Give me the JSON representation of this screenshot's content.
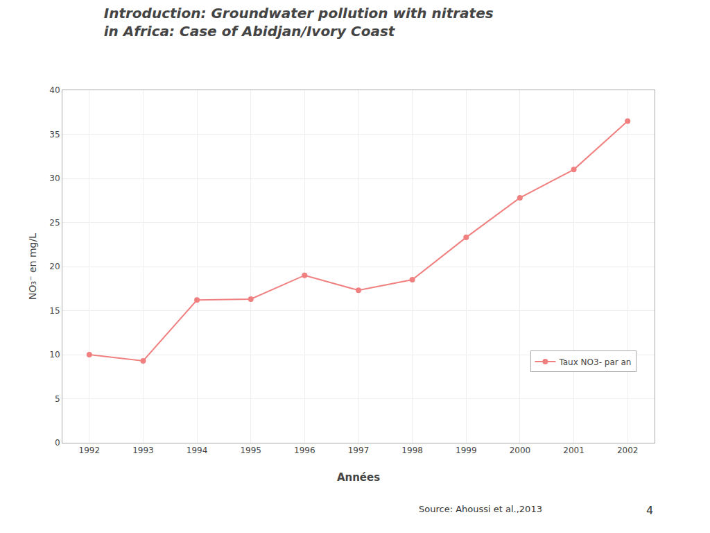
{
  "chart_data": {
    "type": "line",
    "title": "Introduction: Groundwater pollution with nitrates\nin Africa: Case of Abidjan/Ivory Coast",
    "x_label": "Années",
    "y_label": "NO₃⁻ en mg/L",
    "x": [
      1992,
      1993,
      1994,
      1995,
      1996,
      1997,
      1998,
      1999,
      2000,
      2001,
      2002
    ],
    "series": [
      {
        "name": "Taux NO3- par an",
        "color": "#f08080",
        "marker": "circle",
        "values": [
          10.0,
          9.3,
          16.2,
          16.3,
          19.0,
          17.3,
          18.5,
          23.3,
          27.8,
          31.0,
          36.5
        ]
      }
    ],
    "xlim": [
      1991.5,
      2002.5
    ],
    "xticks": [
      1992,
      1993,
      1994,
      1995,
      1996,
      1997,
      1998,
      1999,
      2000,
      2001,
      2002
    ],
    "ylim": [
      0,
      40
    ],
    "yticks": [
      0,
      5,
      10,
      15,
      20,
      25,
      30,
      35,
      40
    ],
    "grid": true,
    "legend": "lower right",
    "annotations": [
      "Source: Ahoussi et al.,2013",
      "4"
    ]
  }
}
